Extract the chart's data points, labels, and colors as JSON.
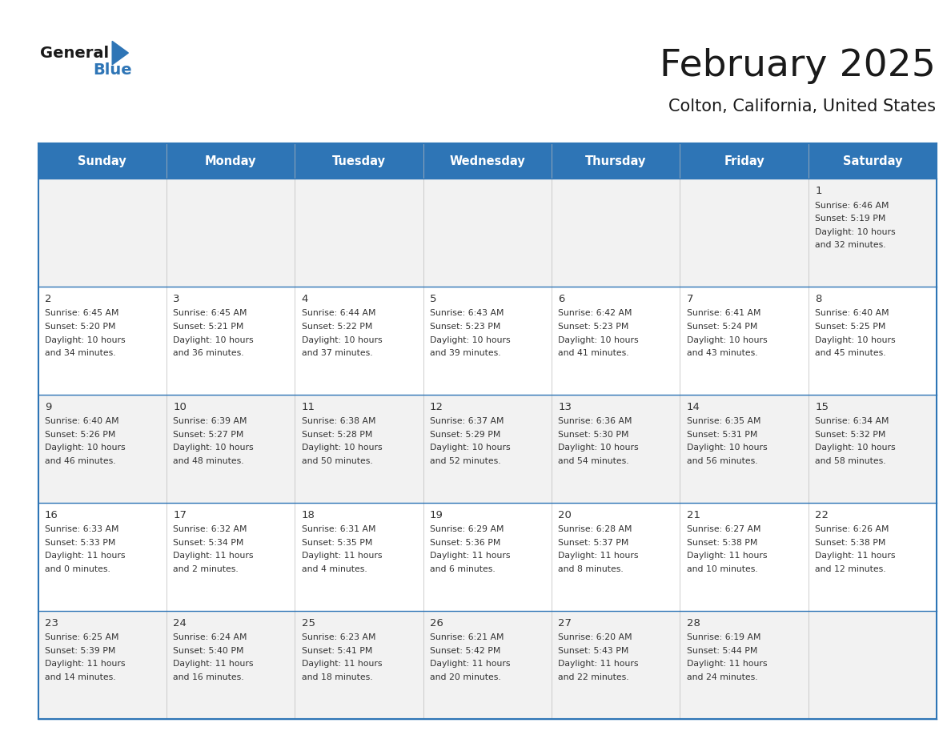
{
  "title": "February 2025",
  "subtitle": "Colton, California, United States",
  "header_bg": "#2E75B6",
  "header_text_color": "#FFFFFF",
  "border_color": "#2E75B6",
  "text_color": "#333333",
  "days_of_week": [
    "Sunday",
    "Monday",
    "Tuesday",
    "Wednesday",
    "Thursday",
    "Friday",
    "Saturday"
  ],
  "row_bg": [
    "#F2F2F2",
    "#FFFFFF",
    "#F2F2F2",
    "#FFFFFF",
    "#F2F2F2"
  ],
  "calendar": [
    [
      null,
      null,
      null,
      null,
      null,
      null,
      {
        "day": "1",
        "sunrise": "6:46 AM",
        "sunset": "5:19 PM",
        "daylight_h": "10",
        "daylight_m": "32"
      }
    ],
    [
      {
        "day": "2",
        "sunrise": "6:45 AM",
        "sunset": "5:20 PM",
        "daylight_h": "10",
        "daylight_m": "34"
      },
      {
        "day": "3",
        "sunrise": "6:45 AM",
        "sunset": "5:21 PM",
        "daylight_h": "10",
        "daylight_m": "36"
      },
      {
        "day": "4",
        "sunrise": "6:44 AM",
        "sunset": "5:22 PM",
        "daylight_h": "10",
        "daylight_m": "37"
      },
      {
        "day": "5",
        "sunrise": "6:43 AM",
        "sunset": "5:23 PM",
        "daylight_h": "10",
        "daylight_m": "39"
      },
      {
        "day": "6",
        "sunrise": "6:42 AM",
        "sunset": "5:23 PM",
        "daylight_h": "10",
        "daylight_m": "41"
      },
      {
        "day": "7",
        "sunrise": "6:41 AM",
        "sunset": "5:24 PM",
        "daylight_h": "10",
        "daylight_m": "43"
      },
      {
        "day": "8",
        "sunrise": "6:40 AM",
        "sunset": "5:25 PM",
        "daylight_h": "10",
        "daylight_m": "45"
      }
    ],
    [
      {
        "day": "9",
        "sunrise": "6:40 AM",
        "sunset": "5:26 PM",
        "daylight_h": "10",
        "daylight_m": "46"
      },
      {
        "day": "10",
        "sunrise": "6:39 AM",
        "sunset": "5:27 PM",
        "daylight_h": "10",
        "daylight_m": "48"
      },
      {
        "day": "11",
        "sunrise": "6:38 AM",
        "sunset": "5:28 PM",
        "daylight_h": "10",
        "daylight_m": "50"
      },
      {
        "day": "12",
        "sunrise": "6:37 AM",
        "sunset": "5:29 PM",
        "daylight_h": "10",
        "daylight_m": "52"
      },
      {
        "day": "13",
        "sunrise": "6:36 AM",
        "sunset": "5:30 PM",
        "daylight_h": "10",
        "daylight_m": "54"
      },
      {
        "day": "14",
        "sunrise": "6:35 AM",
        "sunset": "5:31 PM",
        "daylight_h": "10",
        "daylight_m": "56"
      },
      {
        "day": "15",
        "sunrise": "6:34 AM",
        "sunset": "5:32 PM",
        "daylight_h": "10",
        "daylight_m": "58"
      }
    ],
    [
      {
        "day": "16",
        "sunrise": "6:33 AM",
        "sunset": "5:33 PM",
        "daylight_h": "11",
        "daylight_m": "0"
      },
      {
        "day": "17",
        "sunrise": "6:32 AM",
        "sunset": "5:34 PM",
        "daylight_h": "11",
        "daylight_m": "2"
      },
      {
        "day": "18",
        "sunrise": "6:31 AM",
        "sunset": "5:35 PM",
        "daylight_h": "11",
        "daylight_m": "4"
      },
      {
        "day": "19",
        "sunrise": "6:29 AM",
        "sunset": "5:36 PM",
        "daylight_h": "11",
        "daylight_m": "6"
      },
      {
        "day": "20",
        "sunrise": "6:28 AM",
        "sunset": "5:37 PM",
        "daylight_h": "11",
        "daylight_m": "8"
      },
      {
        "day": "21",
        "sunrise": "6:27 AM",
        "sunset": "5:38 PM",
        "daylight_h": "11",
        "daylight_m": "10"
      },
      {
        "day": "22",
        "sunrise": "6:26 AM",
        "sunset": "5:38 PM",
        "daylight_h": "11",
        "daylight_m": "12"
      }
    ],
    [
      {
        "day": "23",
        "sunrise": "6:25 AM",
        "sunset": "5:39 PM",
        "daylight_h": "11",
        "daylight_m": "14"
      },
      {
        "day": "24",
        "sunrise": "6:24 AM",
        "sunset": "5:40 PM",
        "daylight_h": "11",
        "daylight_m": "16"
      },
      {
        "day": "25",
        "sunrise": "6:23 AM",
        "sunset": "5:41 PM",
        "daylight_h": "11",
        "daylight_m": "18"
      },
      {
        "day": "26",
        "sunrise": "6:21 AM",
        "sunset": "5:42 PM",
        "daylight_h": "11",
        "daylight_m": "20"
      },
      {
        "day": "27",
        "sunrise": "6:20 AM",
        "sunset": "5:43 PM",
        "daylight_h": "11",
        "daylight_m": "22"
      },
      {
        "day": "28",
        "sunrise": "6:19 AM",
        "sunset": "5:44 PM",
        "daylight_h": "11",
        "daylight_m": "24"
      },
      null
    ]
  ],
  "fig_width": 11.88,
  "fig_height": 9.18
}
